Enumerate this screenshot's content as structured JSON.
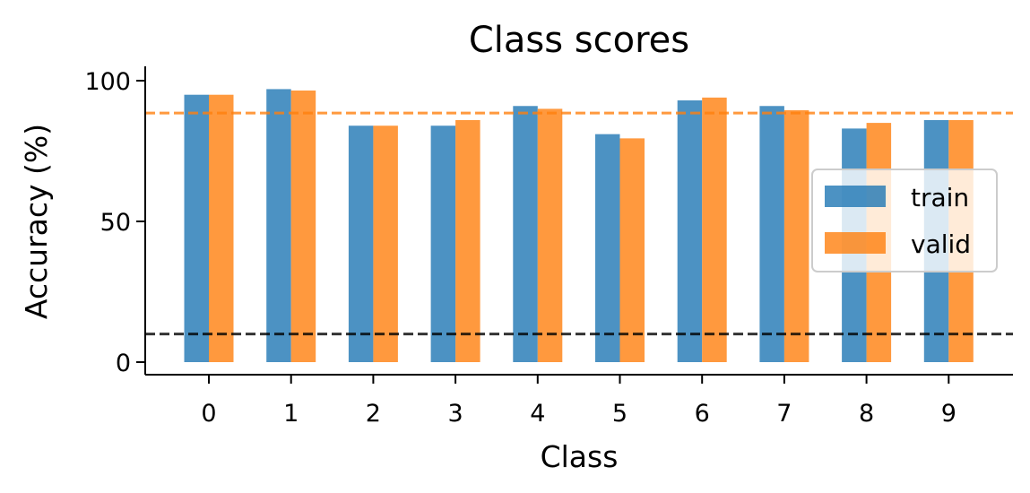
{
  "chart_data": {
    "type": "bar",
    "title": "Class scores",
    "xlabel": "Class",
    "ylabel": "Accuracy (%)",
    "categories": [
      "0",
      "1",
      "2",
      "3",
      "4",
      "5",
      "6",
      "7",
      "8",
      "9"
    ],
    "series": [
      {
        "name": "train",
        "color": "#1f77b4",
        "values": [
          95,
          97,
          84,
          84,
          91,
          81,
          93,
          91,
          83,
          86
        ]
      },
      {
        "name": "valid",
        "color": "#ff7f0e",
        "values": [
          95,
          96.5,
          84,
          86,
          90,
          79.5,
          94,
          89.5,
          85,
          86
        ]
      }
    ],
    "reference_lines": [
      {
        "value": 88.5,
        "color": "#ff7f0e",
        "style": "dashed"
      },
      {
        "value": 10,
        "color": "#000000",
        "style": "dashed"
      }
    ],
    "ylim": [
      -4.5,
      105
    ],
    "yticks": [
      0,
      50,
      100
    ],
    "grid": false,
    "legend_position": "right"
  }
}
